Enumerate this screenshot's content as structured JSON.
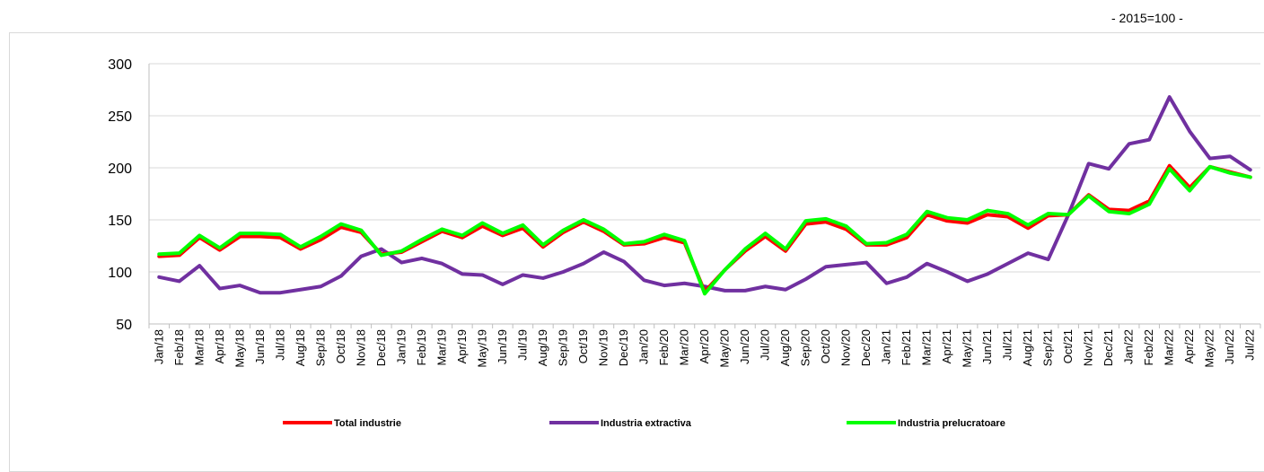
{
  "note": "- 2015=100 -",
  "chart_data": {
    "type": "line",
    "title": "",
    "xlabel": "",
    "ylabel": "",
    "ylim": [
      50,
      300
    ],
    "yticks": [
      50,
      100,
      150,
      200,
      250,
      300
    ],
    "grid": "horizontal",
    "legend_position": "bottom",
    "categories": [
      "Jan/18",
      "Feb/18",
      "Mar/18",
      "Apr/18",
      "May/18",
      "Jun/18",
      "Jul/18",
      "Aug/18",
      "Sep/18",
      "Oct/18",
      "Nov/18",
      "Dec/18",
      "Jan/19",
      "Feb/19",
      "Mar/19",
      "Apr/19",
      "May/19",
      "Jun/19",
      "Jul/19",
      "Aug/19",
      "Sep/19",
      "Oct/19",
      "Nov/19",
      "Dec/19",
      "Jan/20",
      "Feb/20",
      "Mar/20",
      "Apr/20",
      "May/20",
      "Jun/20",
      "Jul/20",
      "Aug/20",
      "Sep/20",
      "Oct/20",
      "Nov/20",
      "Dec/20",
      "Jan/21",
      "Feb/21",
      "Mar/21",
      "Apr/21",
      "May/21",
      "Jun/21",
      "Jul/21",
      "Aug/21",
      "Sep/21",
      "Oct/21",
      "Nov/21",
      "Dec/21",
      "Jan/22",
      "Feb/22",
      "Mar/22",
      "Apr/22",
      "May/22",
      "Jun/22",
      "Jul/22"
    ],
    "series": [
      {
        "name": "Total industrie",
        "color": "#ff0000",
        "values": [
          115,
          116,
          133,
          121,
          134,
          134,
          133,
          122,
          131,
          143,
          138,
          117,
          119,
          129,
          139,
          133,
          144,
          135,
          142,
          124,
          138,
          148,
          139,
          126,
          127,
          133,
          128,
          81,
          102,
          120,
          134,
          120,
          146,
          148,
          141,
          126,
          126,
          133,
          155,
          149,
          147,
          155,
          153,
          142,
          154,
          155,
          174,
          160,
          159,
          168,
          202,
          181,
          201,
          196,
          191
        ]
      },
      {
        "name": "Industria extractiva",
        "color": "#7030a0",
        "values": [
          95,
          91,
          106,
          84,
          87,
          80,
          80,
          83,
          86,
          96,
          115,
          122,
          109,
          113,
          108,
          98,
          97,
          88,
          97,
          94,
          100,
          108,
          119,
          110,
          92,
          87,
          89,
          86,
          82,
          82,
          86,
          83,
          93,
          105,
          107,
          109,
          89,
          95,
          108,
          100,
          91,
          98,
          108,
          118,
          112,
          155,
          204,
          199,
          223,
          227,
          268,
          235,
          209,
          211,
          198
        ]
      },
      {
        "name": "Industria prelucratoare",
        "color": "#00ff00",
        "values": [
          117,
          118,
          135,
          123,
          137,
          137,
          136,
          124,
          134,
          146,
          140,
          116,
          120,
          131,
          141,
          135,
          147,
          137,
          145,
          126,
          140,
          150,
          141,
          127,
          129,
          136,
          130,
          79,
          102,
          122,
          137,
          122,
          149,
          151,
          144,
          127,
          128,
          136,
          158,
          152,
          150,
          159,
          156,
          145,
          156,
          155,
          173,
          158,
          156,
          165,
          199,
          178,
          201,
          195,
          191
        ]
      }
    ]
  }
}
